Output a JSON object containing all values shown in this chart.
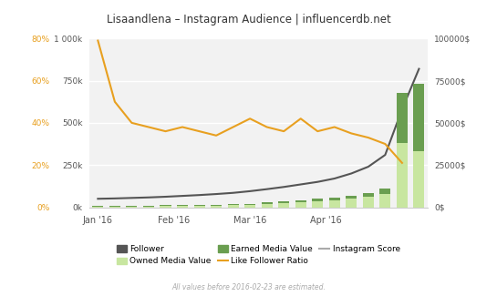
{
  "title": "Lisaandlena – Instagram Audience | influencerdb.net",
  "subtitle": "All values before 2016-02-23 are estimated.",
  "background_color": "#ffffff",
  "plot_bg_color": "#f2f2f2",
  "grid_color": "#ffffff",
  "follower_x": [
    0,
    1,
    2,
    3,
    4,
    5,
    6,
    7,
    8,
    9,
    10,
    11,
    12,
    13,
    14,
    15,
    16,
    17,
    18,
    19
  ],
  "follower_y": [
    50000,
    52000,
    55000,
    58000,
    62000,
    67000,
    72000,
    78000,
    85000,
    95000,
    107000,
    120000,
    135000,
    150000,
    170000,
    200000,
    240000,
    310000,
    580000,
    820000
  ],
  "like_ratio_x": [
    0,
    1,
    2,
    3,
    4,
    5,
    6,
    7,
    8,
    9,
    10,
    11,
    12,
    13,
    14,
    15,
    16,
    17,
    18
  ],
  "like_ratio_y": [
    0.79,
    0.5,
    0.4,
    0.38,
    0.36,
    0.38,
    0.36,
    0.34,
    0.38,
    0.42,
    0.38,
    0.36,
    0.42,
    0.36,
    0.38,
    0.35,
    0.33,
    0.3,
    0.21
  ],
  "bar_x": [
    0,
    1,
    2,
    3,
    4,
    5,
    6,
    7,
    8,
    9,
    10,
    11,
    12,
    13,
    14,
    15,
    16,
    17,
    18,
    19
  ],
  "owned_media": [
    500,
    500,
    500,
    500,
    800,
    1000,
    1000,
    1000,
    1200,
    1500,
    2000,
    2500,
    3000,
    3500,
    4000,
    5000,
    6000,
    8000,
    38000,
    33000
  ],
  "earned_media": [
    200,
    200,
    200,
    200,
    300,
    400,
    400,
    400,
    500,
    600,
    800,
    1000,
    1200,
    1400,
    1600,
    2000,
    2400,
    3200,
    30000,
    40000
  ],
  "follower_color": "#555555",
  "orange_color": "#e8a020",
  "owned_media_color": "#c8e6a0",
  "earned_media_color": "#6a9e50",
  "score_color": "#aaaaaa",
  "xlim": [
    -0.5,
    19.5
  ],
  "months_ticks": [
    0,
    4.5,
    9,
    13.5
  ],
  "months_labels": [
    "Jan '16",
    "Feb '16",
    "Mar '16",
    "Apr '16"
  ],
  "follower_ylim": [
    0,
    1000000
  ],
  "follower_yticks": [
    0,
    250000,
    500000,
    750000,
    1000000
  ],
  "follower_ylabels": [
    "0k",
    "250k",
    "500k",
    "750k",
    "1 000k"
  ],
  "pct_ylim": [
    0,
    0.8
  ],
  "pct_yticks": [
    0,
    0.2,
    0.4,
    0.6,
    0.8
  ],
  "pct_ylabels": [
    "0%",
    "20%",
    "40%",
    "60%",
    "80%"
  ],
  "right_ylim": [
    0,
    100000
  ],
  "right_yticks": [
    0,
    25000,
    50000,
    75000,
    100000
  ],
  "right_ylabels": [
    "0$",
    "25000$",
    "50000$",
    "75000$",
    "100000$"
  ]
}
